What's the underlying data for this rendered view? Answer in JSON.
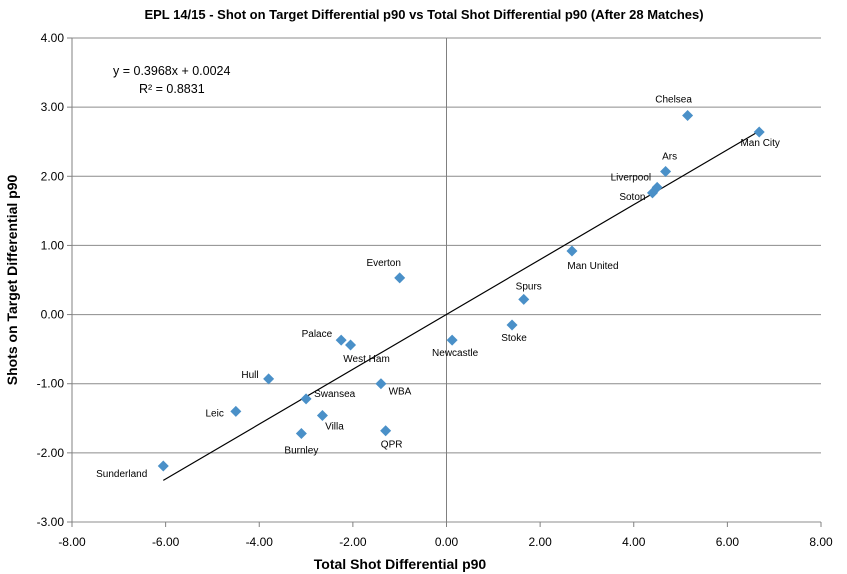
{
  "chart_data": {
    "type": "scatter",
    "title": "EPL 14/15 - Shot on Target Differential p90 vs Total Shot Differential p90 (After 28 Matches)",
    "xlabel": "Total Shot Differential p90",
    "ylabel": "Shots on Target Differential p90",
    "xlim": [
      -8,
      8
    ],
    "ylim": [
      -3,
      4
    ],
    "xticks": [
      -8,
      -6,
      -4,
      -2,
      0,
      2,
      4,
      6,
      8
    ],
    "yticks": [
      -3,
      -2,
      -1,
      0,
      1,
      2,
      3,
      4
    ],
    "xtick_labels": [
      "-8.00",
      "-6.00",
      "-4.00",
      "-2.00",
      "0.00",
      "2.00",
      "4.00",
      "6.00",
      "8.00"
    ],
    "ytick_labels": [
      "-3.00",
      "-2.00",
      "-1.00",
      "0.00",
      "1.00",
      "2.00",
      "3.00",
      "4.00"
    ],
    "grid": true,
    "marker_color": "#4a90c8",
    "points": [
      {
        "label": "Chelsea",
        "x": 5.15,
        "y": 2.88
      },
      {
        "label": "Man City",
        "x": 6.68,
        "y": 2.64
      },
      {
        "label": "Ars",
        "x": 4.68,
        "y": 2.07
      },
      {
        "label": "Liverpool",
        "x": 4.5,
        "y": 1.84
      },
      {
        "label": "Soton",
        "x": 4.4,
        "y": 1.76
      },
      {
        "label": "Man United",
        "x": 2.68,
        "y": 0.92
      },
      {
        "label": "Everton",
        "x": -1.0,
        "y": 0.53
      },
      {
        "label": "Spurs",
        "x": 1.65,
        "y": 0.22
      },
      {
        "label": "Stoke",
        "x": 1.4,
        "y": -0.15
      },
      {
        "label": "Newcastle",
        "x": 0.12,
        "y": -0.37
      },
      {
        "label": "Palace",
        "x": -2.25,
        "y": -0.37
      },
      {
        "label": "West Ham",
        "x": -2.05,
        "y": -0.44
      },
      {
        "label": "Hull",
        "x": -3.8,
        "y": -0.93
      },
      {
        "label": "WBA",
        "x": -1.4,
        "y": -1.0
      },
      {
        "label": "Swansea",
        "x": -3.0,
        "y": -1.22
      },
      {
        "label": "Leic",
        "x": -4.5,
        "y": -1.4
      },
      {
        "label": "Villa",
        "x": -2.65,
        "y": -1.46
      },
      {
        "label": "QPR",
        "x": -1.3,
        "y": -1.68
      },
      {
        "label": "Burnley",
        "x": -3.1,
        "y": -1.72
      },
      {
        "label": "Sunderland",
        "x": -6.05,
        "y": -2.19
      }
    ],
    "trendline": {
      "slope": 0.3968,
      "intercept": 0.0024,
      "x_start": -6.05,
      "x_end": 6.68,
      "equation": "y = 0.3968x  + 0.0024",
      "r_squared": "R² = 0.8831"
    }
  }
}
